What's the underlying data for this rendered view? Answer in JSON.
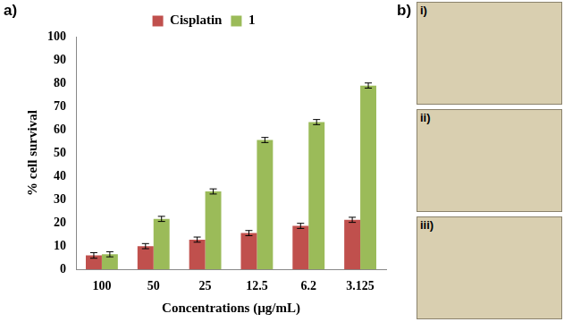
{
  "chart_data": {
    "type": "bar",
    "x_label": "Concentrations (µg/mL)",
    "y_label": "% cell survival",
    "categories": [
      "100",
      "50",
      "25",
      "12.5",
      "6.2",
      "3.125"
    ],
    "series": [
      {
        "name": "Cisplatin",
        "color": "#c0504d",
        "values": [
          6,
          10,
          12.8,
          15.6,
          18.7,
          21.3
        ],
        "errors": [
          1.2,
          1.1,
          1.1,
          1.1,
          1.1,
          1.1
        ]
      },
      {
        "name": "1",
        "color": "#9bbb59",
        "values": [
          6.5,
          21.7,
          33.5,
          55.6,
          63.3,
          79
        ],
        "errors": [
          1.1,
          1.1,
          1.1,
          1.1,
          1.1,
          1.1
        ]
      }
    ],
    "ylim": [
      0,
      100
    ],
    "yticks": [
      0,
      10,
      20,
      30,
      40,
      50,
      60,
      70,
      80,
      90,
      100
    ],
    "grid": false,
    "legend": "upper center"
  },
  "panels": {
    "chart_label": "a)",
    "images_label": "b)",
    "image_labels": [
      "i)",
      "ii)",
      "iii)"
    ]
  }
}
